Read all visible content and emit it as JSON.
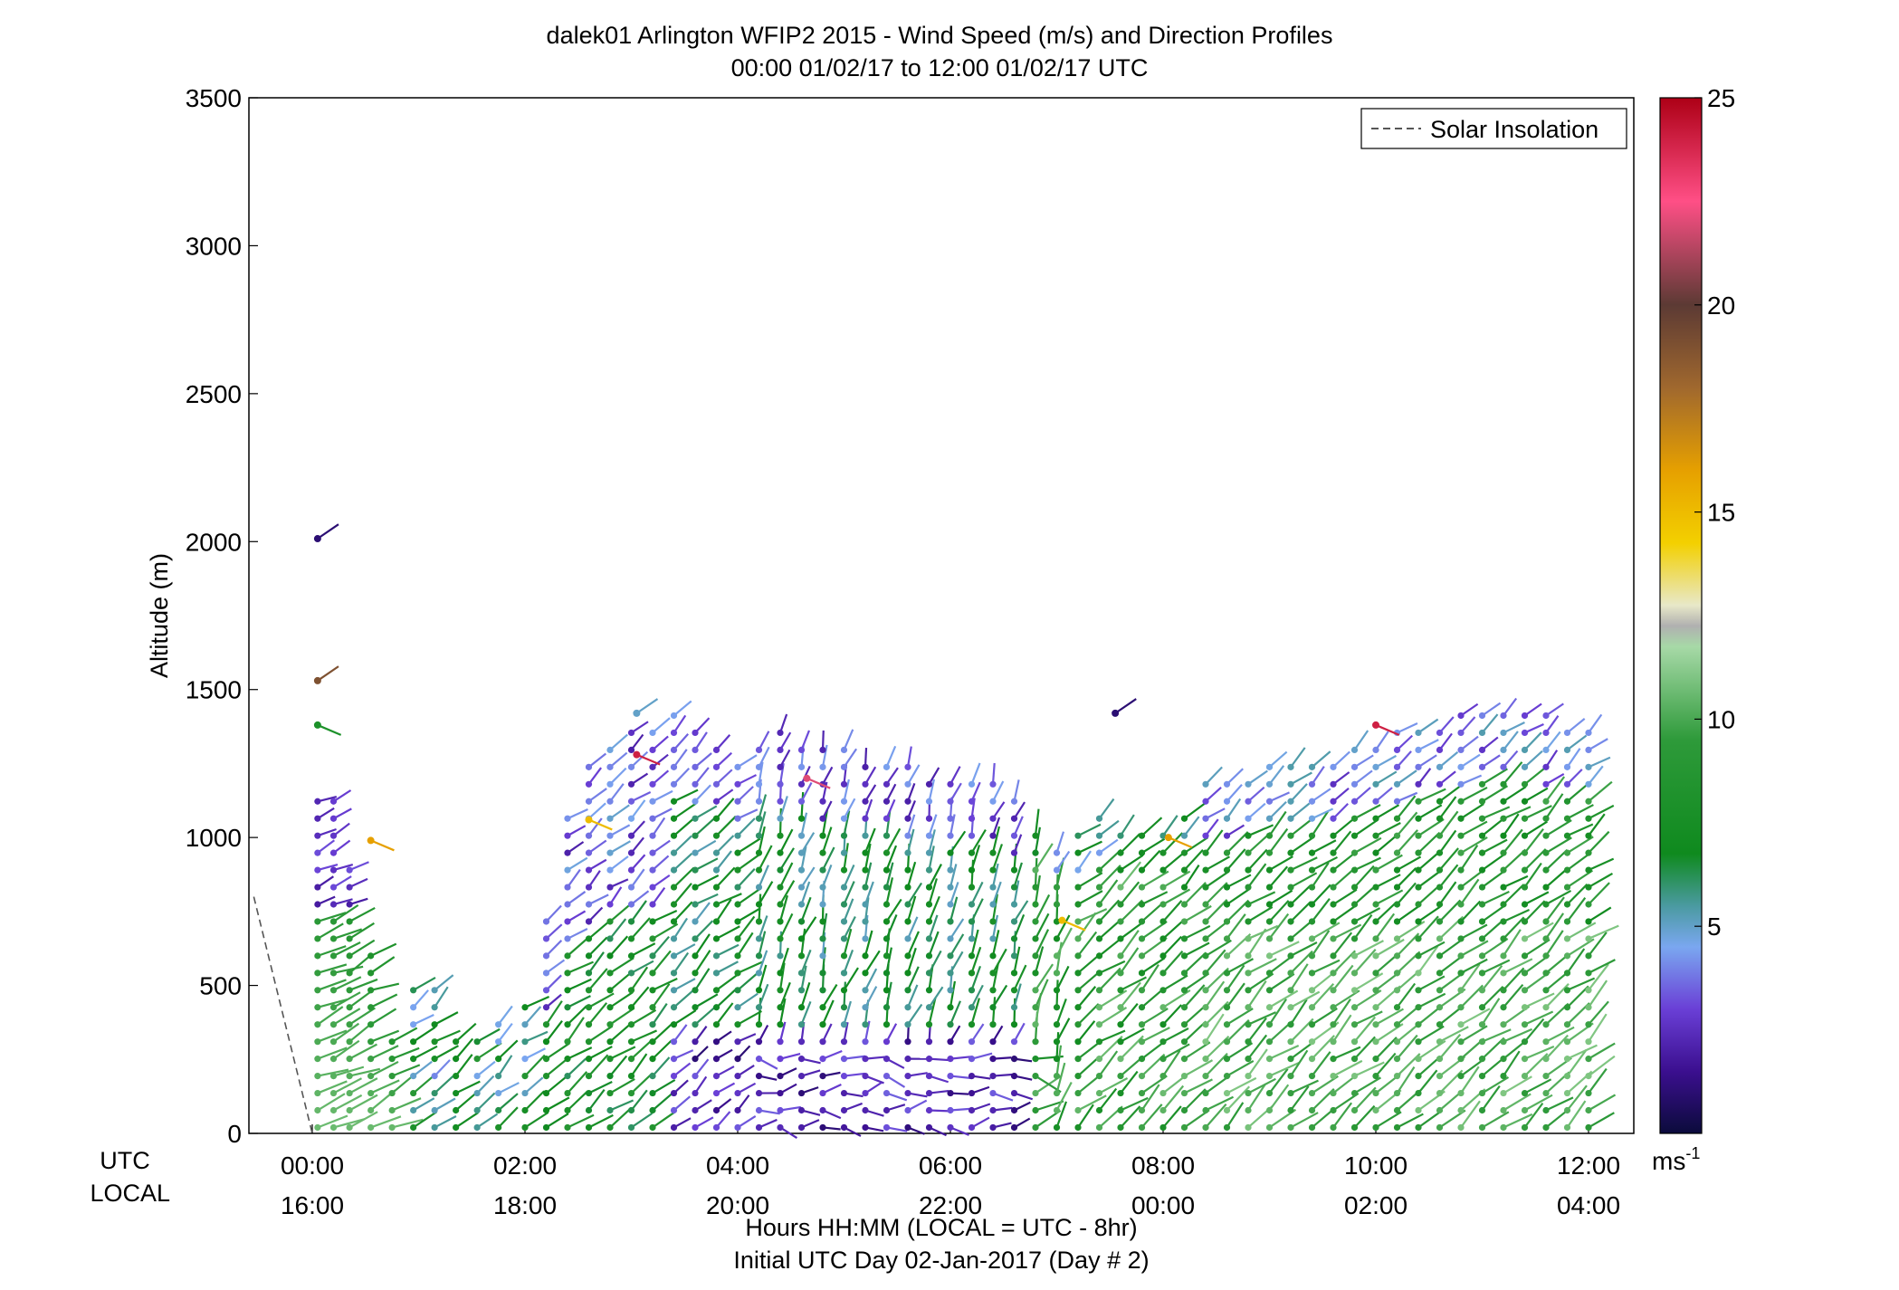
{
  "chart_data": {
    "type": "scatter",
    "title": "dalek01 Arlington WFIP2 2015 - Wind Speed (m/s) and Direction Profiles",
    "subtitle": "00:00 01/02/17 to 12:00 01/02/17  UTC",
    "ylabel": "Altitude (m)",
    "xlabel": "Hours HH:MM  (LOCAL = UTC - 8hr)",
    "xlabel2": "Initial UTC Day 02-Jan-2017 (Day # 2)",
    "row_label_utc": "UTC",
    "row_label_local": "LOCAL",
    "ylim": [
      0,
      3500
    ],
    "xlim_hours": [
      -0.5,
      12.5
    ],
    "y_ticks": [
      "0",
      "500",
      "1000",
      "1500",
      "2000",
      "2500",
      "3000",
      "3500"
    ],
    "x_ticks_utc": [
      "00:00",
      "02:00",
      "04:00",
      "06:00",
      "08:00",
      "10:00",
      "12:00"
    ],
    "x_ticks_local": [
      "16:00",
      "18:00",
      "20:00",
      "22:00",
      "00:00",
      "02:00",
      "04:00"
    ],
    "legend": {
      "entries": [
        "Solar Insolation"
      ],
      "position": "top-right",
      "line_style": "dashed",
      "line_color": "#555555"
    },
    "colorbar": {
      "range": [
        0,
        25
      ],
      "ticks": [
        "5",
        "10",
        "15",
        "20",
        "25"
      ],
      "unit": "ms",
      "unit_sup": "-1",
      "colormap": [
        "#0b0b3b",
        "#3b0f8f",
        "#6a3fd6",
        "#7aa7f0",
        "#4a9aa0",
        "#0f8a1e",
        "#2e9a3a",
        "#8fce8f",
        "#e8e8c8",
        "#f3d000",
        "#e6a000",
        "#a0682e",
        "#5c3a34",
        "#ff4f86",
        "#ad0016"
      ]
    },
    "solar_insolation": {
      "x_hours": [
        -0.55,
        0.0
      ],
      "y": [
        800,
        0
      ]
    },
    "profile_top_altitude": [
      [
        0.05,
        1170
      ],
      [
        0.2,
        1170
      ],
      [
        0.35,
        920
      ],
      [
        0.55,
        640
      ],
      [
        0.75,
        360
      ],
      [
        0.95,
        520
      ],
      [
        1.15,
        490
      ],
      [
        1.35,
        360
      ],
      [
        1.55,
        340
      ],
      [
        1.75,
        420
      ],
      [
        2.0,
        480
      ],
      [
        2.2,
        760
      ],
      [
        2.4,
        1100
      ],
      [
        2.6,
        1290
      ],
      [
        2.8,
        1340
      ],
      [
        3.0,
        1380
      ],
      [
        3.2,
        1390
      ],
      [
        3.4,
        1420
      ],
      [
        3.6,
        1380
      ],
      [
        3.8,
        1330
      ],
      [
        4.0,
        1290
      ],
      [
        4.2,
        1340
      ],
      [
        4.4,
        1360
      ],
      [
        4.6,
        1340
      ],
      [
        4.8,
        1300
      ],
      [
        5.0,
        1300
      ],
      [
        5.2,
        1280
      ],
      [
        5.4,
        1260
      ],
      [
        5.6,
        1240
      ],
      [
        5.8,
        1230
      ],
      [
        6.0,
        1220
      ],
      [
        6.2,
        1210
      ],
      [
        6.4,
        1190
      ],
      [
        6.6,
        1130
      ],
      [
        6.8,
        1050
      ],
      [
        7.0,
        990
      ],
      [
        7.2,
        1040
      ],
      [
        7.4,
        1080
      ],
      [
        7.6,
        1020
      ],
      [
        7.8,
        1010
      ],
      [
        8.0,
        1050
      ],
      [
        8.2,
        1120
      ],
      [
        8.4,
        1180
      ],
      [
        8.6,
        1210
      ],
      [
        8.8,
        1230
      ],
      [
        9.0,
        1250
      ],
      [
        9.2,
        1260
      ],
      [
        9.4,
        1280
      ],
      [
        9.6,
        1290
      ],
      [
        9.8,
        1310
      ],
      [
        10.0,
        1340
      ],
      [
        10.2,
        1360
      ],
      [
        10.4,
        1380
      ],
      [
        10.6,
        1400
      ],
      [
        10.8,
        1430
      ],
      [
        11.0,
        1440
      ],
      [
        11.2,
        1450
      ],
      [
        11.4,
        1440
      ],
      [
        11.6,
        1420
      ],
      [
        11.8,
        1410
      ],
      [
        12.0,
        1400
      ]
    ],
    "notable_points": [
      {
        "x_hours": 0.05,
        "altitude": 2010,
        "speed": 1
      },
      {
        "x_hours": 0.05,
        "altitude": 1530,
        "speed": 19
      },
      {
        "x_hours": 0.05,
        "altitude": 1380,
        "speed": 8
      },
      {
        "x_hours": 0.55,
        "altitude": 990,
        "speed": 16
      },
      {
        "x_hours": 2.6,
        "altitude": 1060,
        "speed": 15
      },
      {
        "x_hours": 3.05,
        "altitude": 1280,
        "speed": 24
      },
      {
        "x_hours": 3.05,
        "altitude": 1420,
        "speed": 5
      },
      {
        "x_hours": 4.65,
        "altitude": 1200,
        "speed": 22
      },
      {
        "x_hours": 7.55,
        "altitude": 1420,
        "speed": 1
      },
      {
        "x_hours": 8.05,
        "altitude": 1000,
        "speed": 16
      },
      {
        "x_hours": 10.0,
        "altitude": 1380,
        "speed": 24
      },
      {
        "x_hours": 7.05,
        "altitude": 720,
        "speed": 15
      }
    ]
  }
}
